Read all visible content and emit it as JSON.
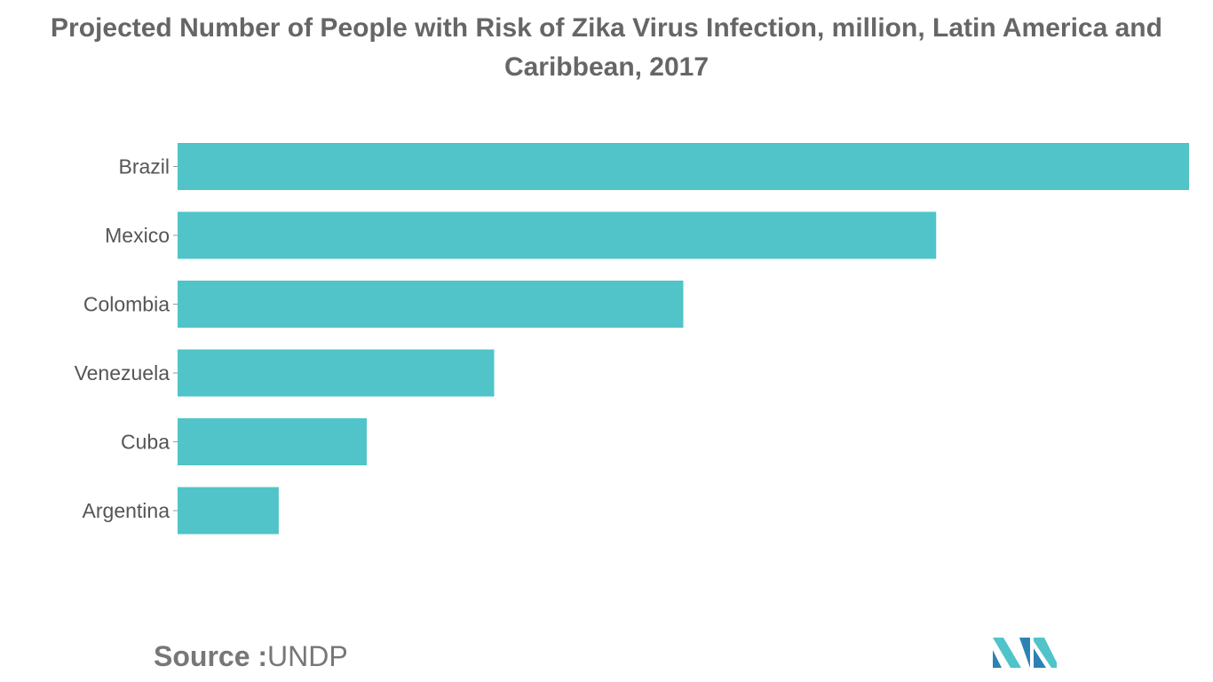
{
  "chart_data": {
    "type": "bar",
    "orientation": "horizontal",
    "title": "Projected Number of People with Risk of Zika Virus Infection, million, Latin America and Caribbean, 2017",
    "categories": [
      "Brazil",
      "Mexico",
      "Colombia",
      "Venezuela",
      "Cuba",
      "Argentina"
    ],
    "values": [
      100,
      75,
      50,
      31.3,
      18.7,
      10
    ],
    "xlim": [
      0,
      100
    ],
    "grid": false,
    "legend": "none",
    "bar_color": "#50C4C8"
  },
  "source": {
    "label": "Source :",
    "value": "UNDP"
  },
  "logo": {
    "icon": "mordor-intelligence-logo",
    "colors": [
      "#2C82B5",
      "#50C4C8"
    ]
  }
}
